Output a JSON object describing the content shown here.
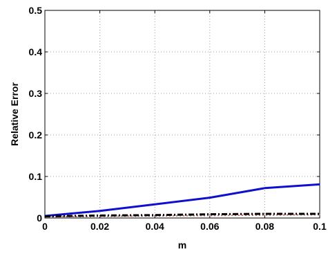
{
  "chart_data": {
    "type": "line",
    "xlabel": "m",
    "ylabel": "Relative Error",
    "xlim": [
      0,
      0.1
    ],
    "ylim": [
      0,
      0.5
    ],
    "x_ticks": [
      "0",
      "0.02",
      "0.04",
      "0.06",
      "0.08",
      "0.1"
    ],
    "y_ticks": [
      "0",
      "0.1",
      "0.2",
      "0.3",
      "0.4",
      "0.5"
    ],
    "x_tick_values": [
      0,
      0.02,
      0.04,
      0.06,
      0.08,
      0.1
    ],
    "y_tick_values": [
      0,
      0.1,
      0.2,
      0.3,
      0.4,
      0.5
    ],
    "grid": true,
    "series": [
      {
        "x": [
          0,
          0.02,
          0.04,
          0.06,
          0.08,
          0.1
        ],
        "values": [
          0.005,
          0.017,
          0.033,
          0.049,
          0.072,
          0.081
        ],
        "color": "#1010cc",
        "style": "solid"
      },
      {
        "x": [
          0,
          0.02,
          0.04,
          0.06,
          0.08,
          0.1
        ],
        "values": [
          0.003,
          0.004,
          0.005,
          0.006,
          0.007,
          0.008
        ],
        "color": "#cc6666",
        "style": "dotted"
      },
      {
        "x": [
          0,
          0.02,
          0.04,
          0.06,
          0.08,
          0.1
        ],
        "values": [
          0.004,
          0.006,
          0.007,
          0.009,
          0.01,
          0.01
        ],
        "color": "#000000",
        "style": "dashdot"
      }
    ]
  }
}
